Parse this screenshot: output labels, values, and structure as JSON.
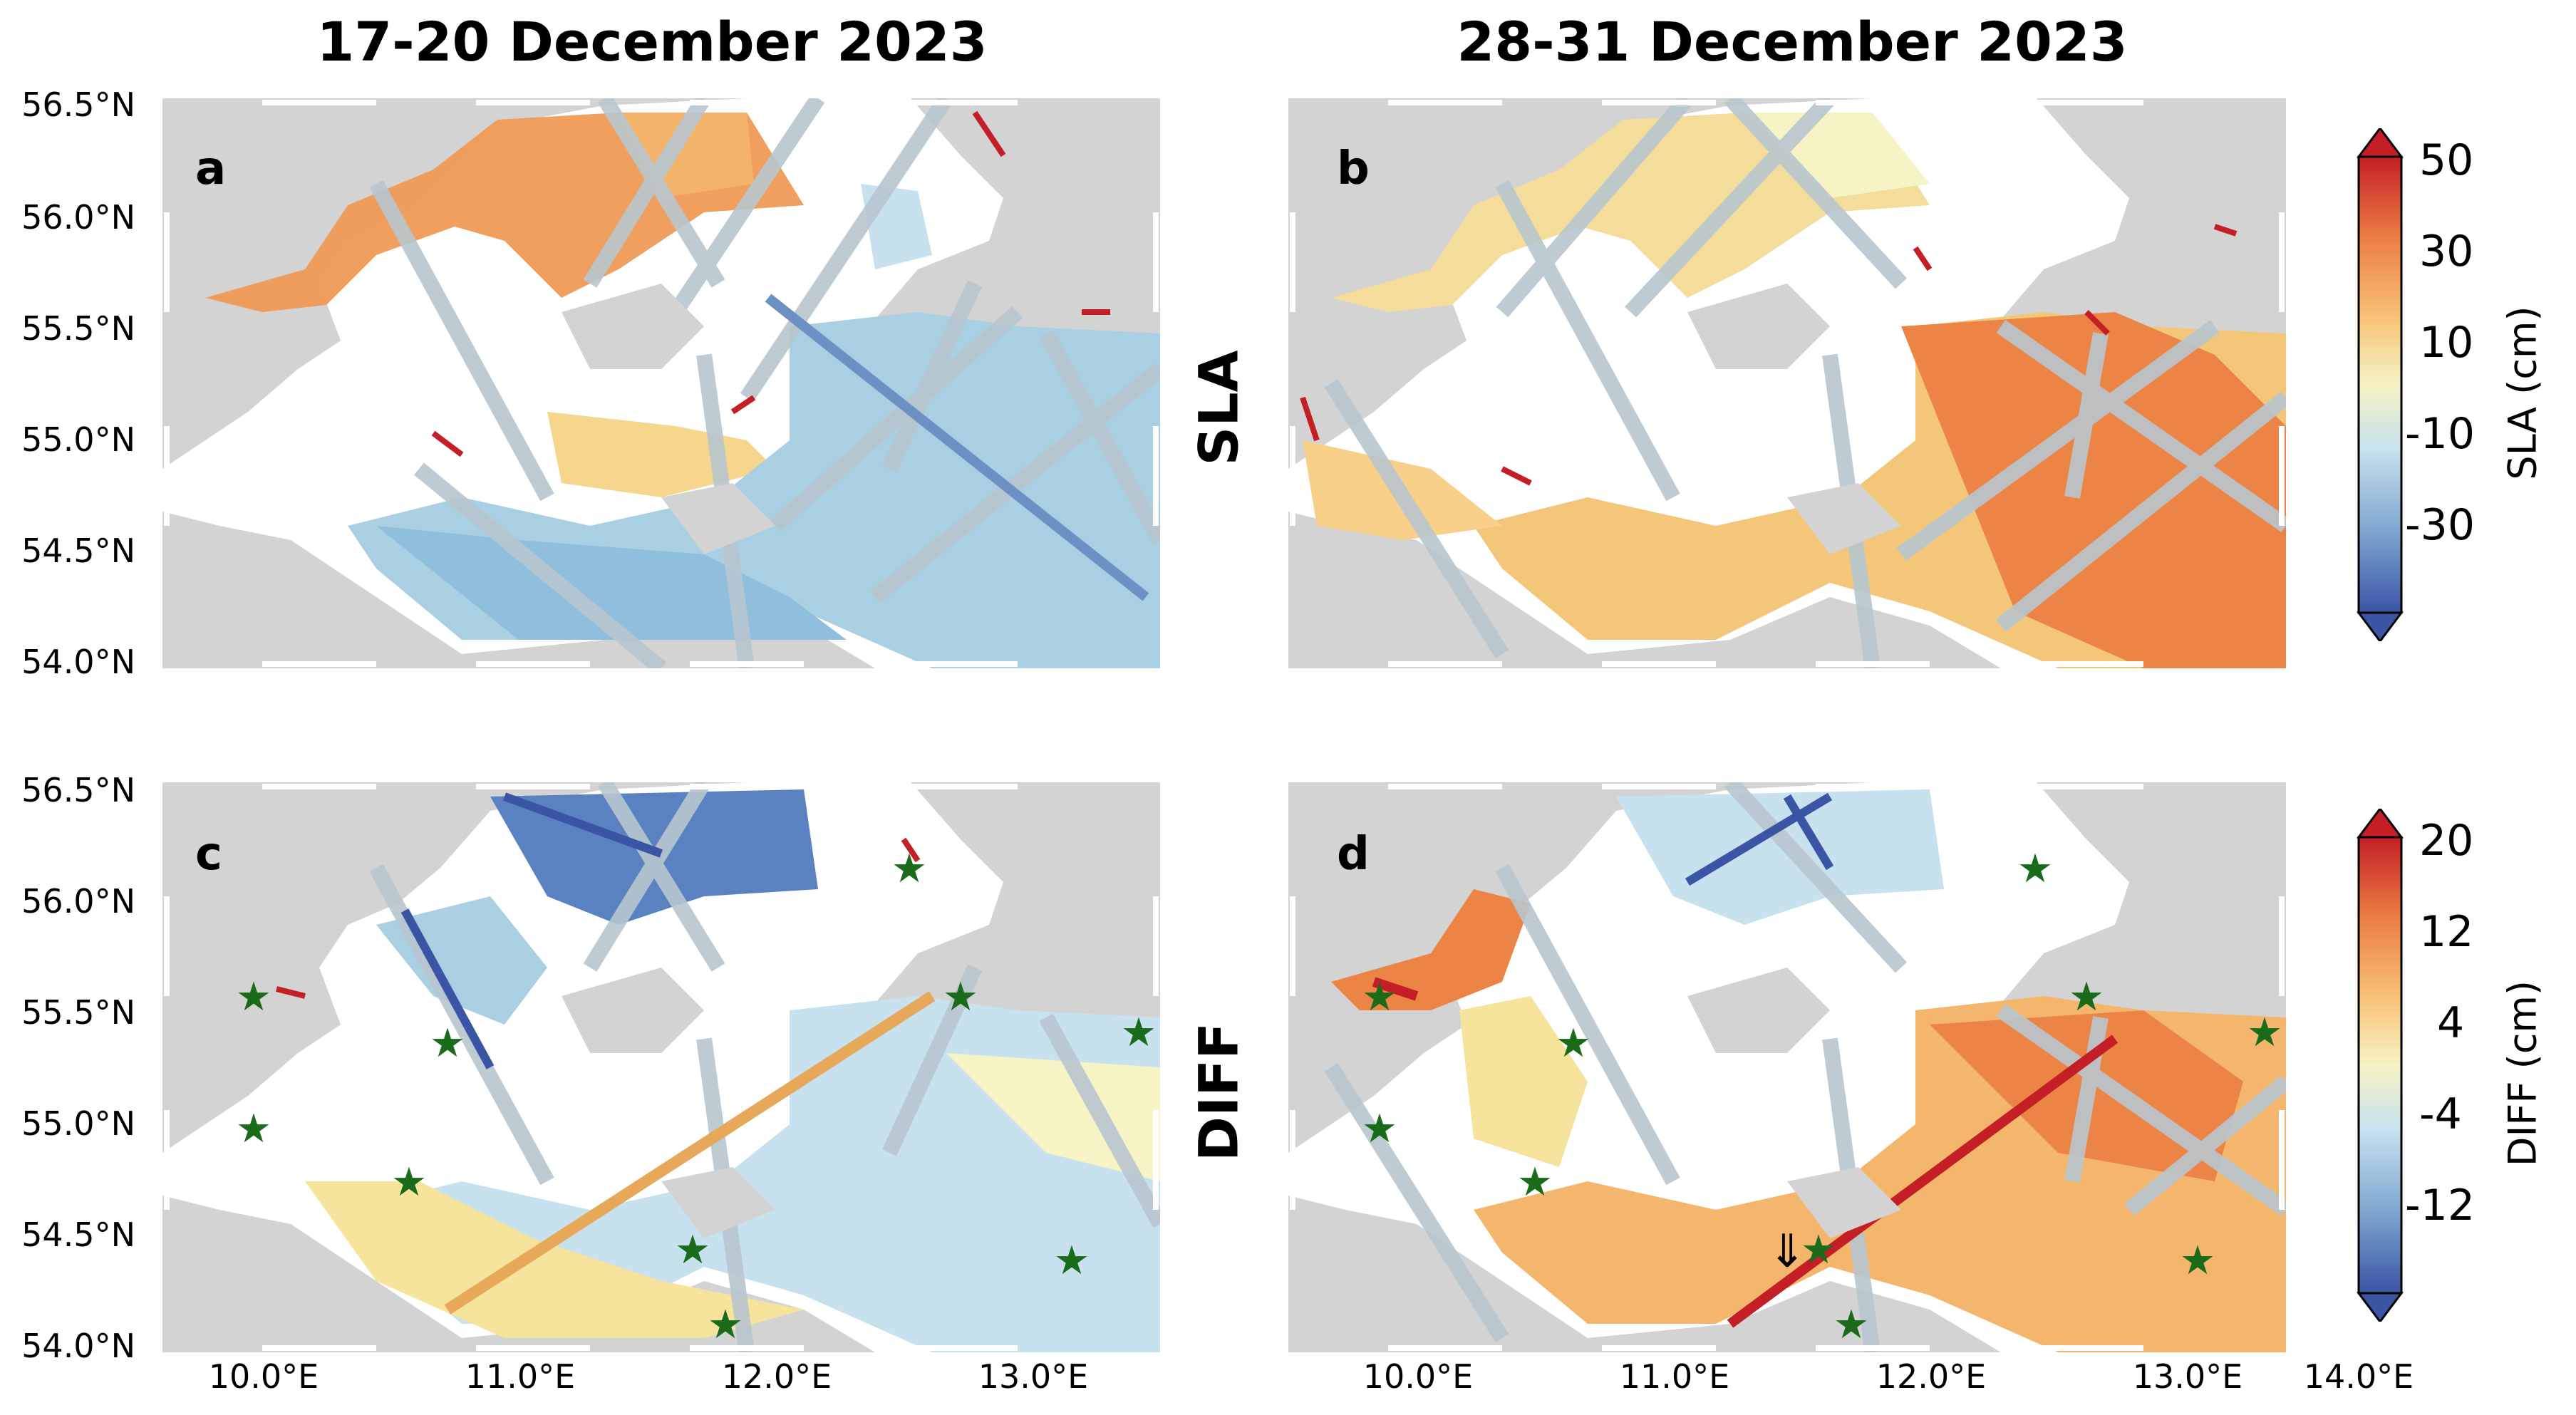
{
  "columns": [
    "17-20 December 2023",
    "28-31 December 2023"
  ],
  "rows": [
    "SLA",
    "DIFF"
  ],
  "panels": [
    {
      "letter": "a",
      "field": "SLA",
      "period": "17-20 December 2023"
    },
    {
      "letter": "b",
      "field": "SLA",
      "period": "28-31 December 2023"
    },
    {
      "letter": "c",
      "field": "DIFF",
      "period": "17-20 December 2023"
    },
    {
      "letter": "d",
      "field": "DIFF",
      "period": "28-31 December 2023"
    }
  ],
  "lat_ticks": [
    "56.5°N",
    "56.0°N",
    "55.5°N",
    "55.0°N",
    "54.5°N",
    "54.0°N"
  ],
  "lon_ticks": [
    "10.0°E",
    "11.0°E",
    "12.0°E",
    "13.0°E",
    "14.0°E"
  ],
  "colorbars": [
    {
      "label": "SLA (cm)",
      "ticks": [
        "50",
        "30",
        "10",
        "-10",
        "-30"
      ],
      "range": [
        -50,
        50
      ]
    },
    {
      "label": "DIFF (cm)",
      "ticks": [
        "20",
        "12",
        "4",
        "-4",
        "-12"
      ],
      "range": [
        -20,
        20
      ]
    }
  ],
  "colors": {
    "land": "#d3d3d3",
    "sea_blank": "#ffffff",
    "stations": "#1a6b1a",
    "colormap": [
      "#3a55a4",
      "#7ea6d0",
      "#c7e2ee",
      "#f6f3c5",
      "#f8c57a",
      "#ec7f43",
      "#c41f26"
    ]
  },
  "stations_marker": "star-icon",
  "annotation_arrow": "⇓"
}
